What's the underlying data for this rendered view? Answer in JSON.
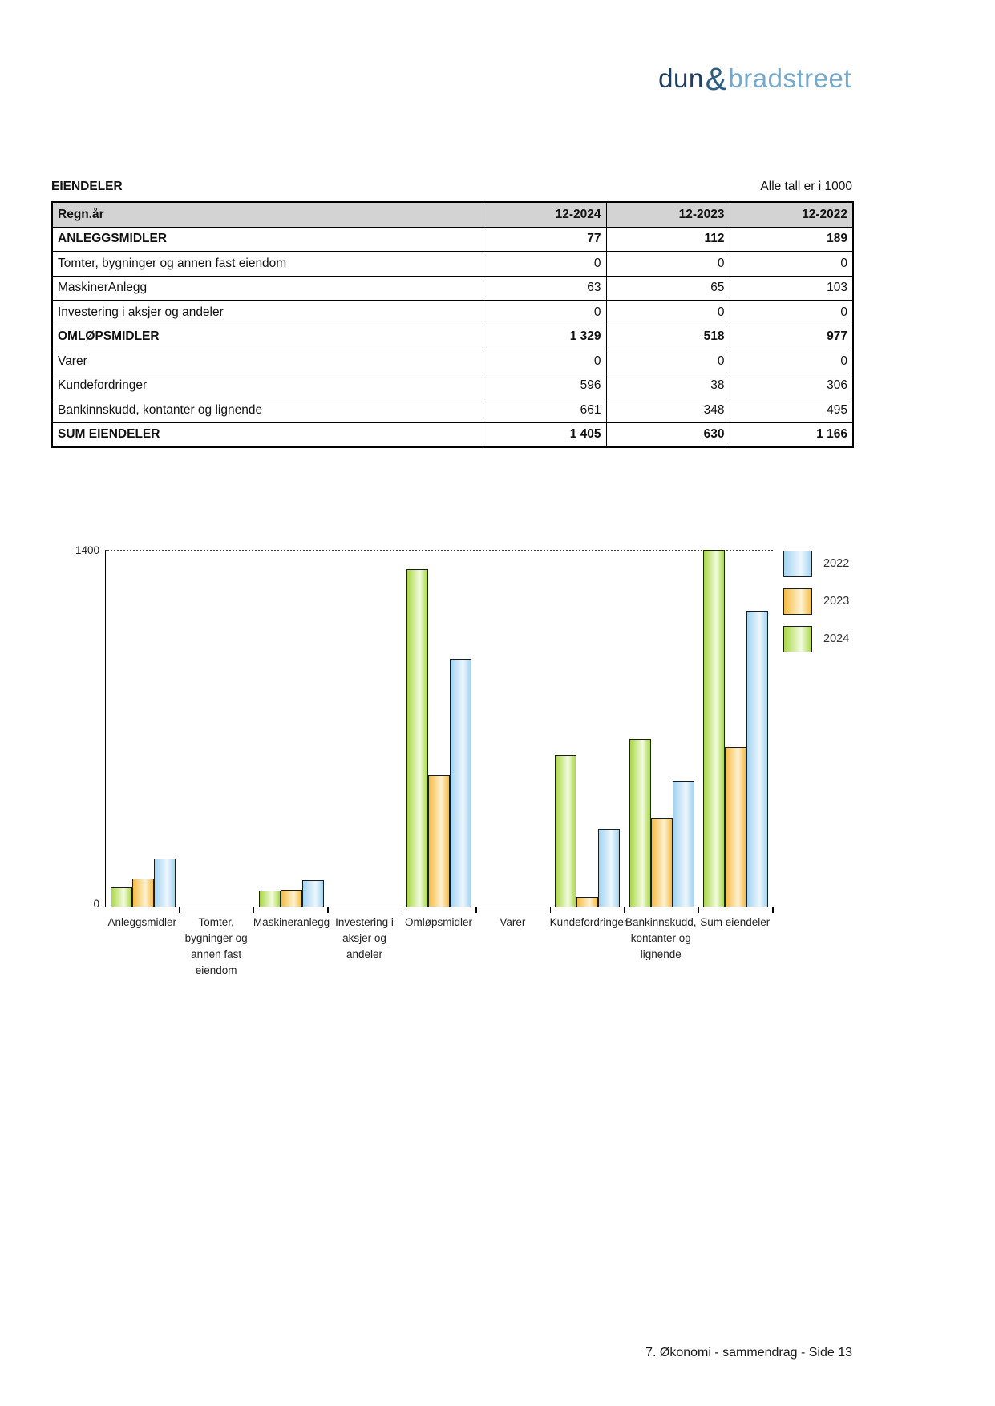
{
  "logo": {
    "dun": "dun",
    "amp": "&",
    "bradstreet": "bradstreet"
  },
  "header": {
    "title": "EIENDELER",
    "note": "Alle tall er i 1000"
  },
  "table": {
    "columns": [
      "Regn.år",
      "12-2024",
      "12-2023",
      "12-2022"
    ],
    "rows": [
      {
        "label": "ANLEGGSMIDLER",
        "values": [
          "77",
          "112",
          "189"
        ],
        "bold": true
      },
      {
        "label": "Tomter, bygninger og annen fast eiendom",
        "values": [
          "0",
          "0",
          "0"
        ],
        "bold": false
      },
      {
        "label": "MaskinerAnlegg",
        "values": [
          "63",
          "65",
          "103"
        ],
        "bold": false
      },
      {
        "label": "Investering i aksjer og andeler",
        "values": [
          "0",
          "0",
          "0"
        ],
        "bold": false
      },
      {
        "label": "OMLØPSMIDLER",
        "values": [
          "1 329",
          "518",
          "977"
        ],
        "bold": true
      },
      {
        "label": "Varer",
        "values": [
          "0",
          "0",
          "0"
        ],
        "bold": false
      },
      {
        "label": "Kundefordringer",
        "values": [
          "596",
          "38",
          "306"
        ],
        "bold": false
      },
      {
        "label": "Bankinnskudd, kontanter og lignende",
        "values": [
          "661",
          "348",
          "495"
        ],
        "bold": false
      },
      {
        "label": "SUM EIENDELER",
        "values": [
          "1 405",
          "630",
          "1 166"
        ],
        "bold": true
      }
    ]
  },
  "chart_data": {
    "type": "bar",
    "title": "",
    "xlabel": "",
    "ylabel": "",
    "ylim": [
      0,
      1400
    ],
    "yticks": [
      0,
      1400
    ],
    "grid": "dotted-line-at-1400",
    "legend_position": "right-top",
    "categories": [
      "Anleggsmidler",
      "Tomter, bygninger og annen fast eiendom",
      "Maskineranlegg",
      "Investering i aksjer og andeler",
      "Omløpsmidler",
      "Varer",
      "Kundefordringer",
      "Bankinnskudd, kontanter og lignende",
      "Sum eiendeler"
    ],
    "category_lines": [
      [
        "Anleggsmidler"
      ],
      [
        "Tomter,",
        "bygninger og",
        "annen fast",
        "eiendom"
      ],
      [
        "Maskineranlegg"
      ],
      [
        "Investering i",
        "aksjer og",
        "andeler"
      ],
      [
        "Omløpsmidler"
      ],
      [
        "Varer"
      ],
      [
        "Kundefordringer"
      ],
      [
        "Bankinnskudd,",
        "kontanter og",
        "lignende"
      ],
      [
        "Sum eiendeler"
      ]
    ],
    "series": [
      {
        "name": "2024",
        "color": "#a9d845",
        "color_light": "#f3fbe0",
        "values": [
          77,
          0,
          63,
          0,
          1329,
          0,
          596,
          661,
          1405
        ]
      },
      {
        "name": "2023",
        "color": "#f6bb42",
        "color_light": "#fdf2d3",
        "values": [
          112,
          0,
          65,
          0,
          518,
          0,
          38,
          348,
          630
        ]
      },
      {
        "name": "2022",
        "color": "#a2d3f0",
        "color_light": "#edf7fd",
        "values": [
          189,
          0,
          103,
          0,
          977,
          0,
          306,
          495,
          1166
        ]
      }
    ],
    "legend_order": [
      "2022",
      "2023",
      "2024"
    ]
  },
  "footer": {
    "text": "7. Økonomi - sammendrag - Side 13"
  }
}
